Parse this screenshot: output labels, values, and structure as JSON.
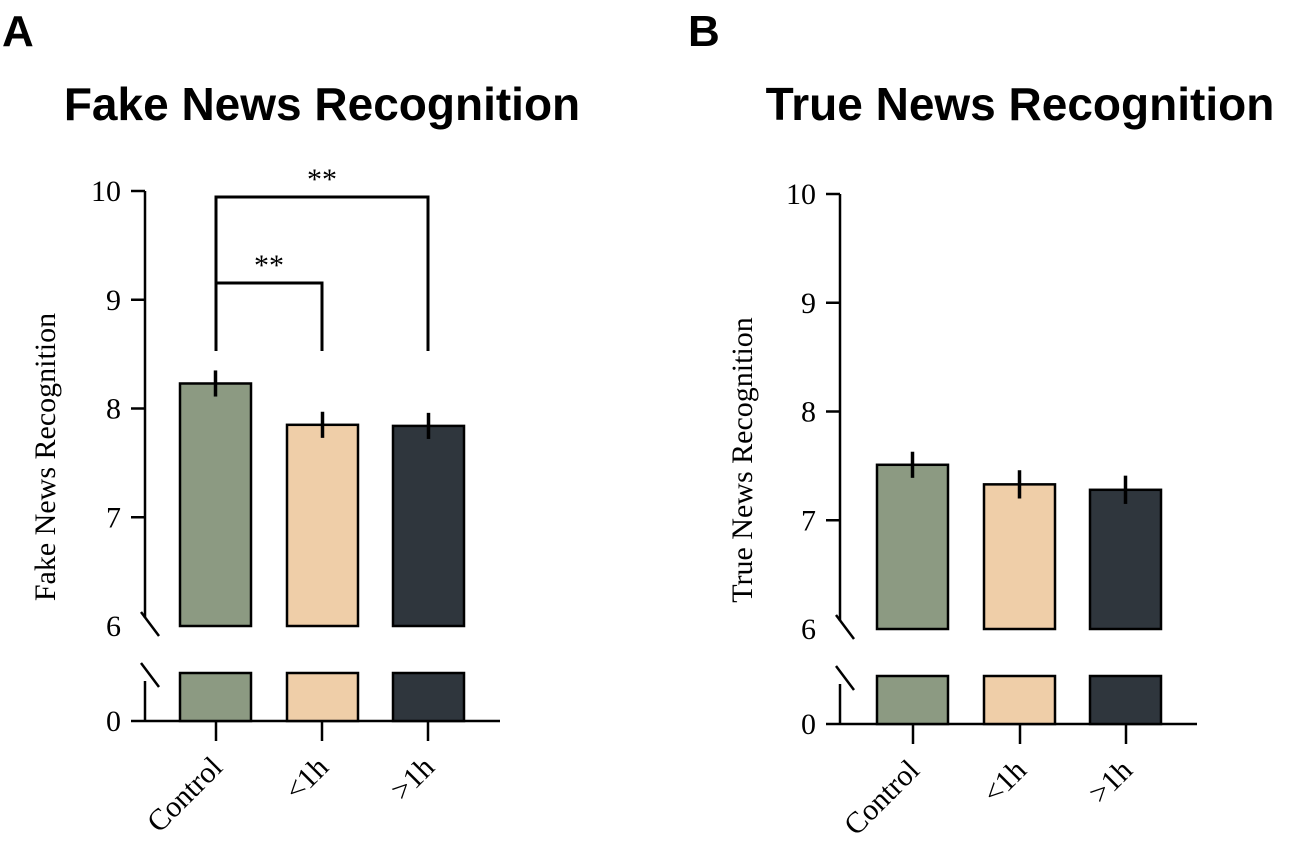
{
  "panels": [
    {
      "letter": "A",
      "title": "Fake News Recognition"
    },
    {
      "letter": "B",
      "title": "True News Recognition"
    }
  ],
  "colors": {
    "Control": "#8c9a82",
    "<1h": "#efcea8",
    ">1h": "#2f363d"
  },
  "chart_data": [
    {
      "type": "bar",
      "title": "Fake News Recognition",
      "ylabel": "Fake News Recognition",
      "xlabel": "",
      "categories": [
        "Control",
        "<1h",
        ">1h"
      ],
      "values": [
        8.23,
        7.85,
        7.84
      ],
      "errors": [
        0.12,
        0.12,
        0.12
      ],
      "ylim": [
        0,
        10
      ],
      "axis_break": [
        0,
        6
      ],
      "yticks": [
        0,
        6,
        7,
        8,
        9,
        10
      ],
      "grid": false,
      "significance": [
        {
          "from": "Control",
          "to": "<1h",
          "label": "**"
        },
        {
          "from": "Control",
          "to": ">1h",
          "label": "**"
        }
      ]
    },
    {
      "type": "bar",
      "title": "True News Recognition",
      "ylabel": "True News Recognition",
      "xlabel": "",
      "categories": [
        "Control",
        "<1h",
        ">1h"
      ],
      "values": [
        7.51,
        7.33,
        7.28
      ],
      "errors": [
        0.12,
        0.13,
        0.13
      ],
      "ylim": [
        0,
        10
      ],
      "axis_break": [
        0,
        6
      ],
      "yticks": [
        0,
        6,
        7,
        8,
        9,
        10
      ],
      "grid": false,
      "significance": []
    }
  ]
}
